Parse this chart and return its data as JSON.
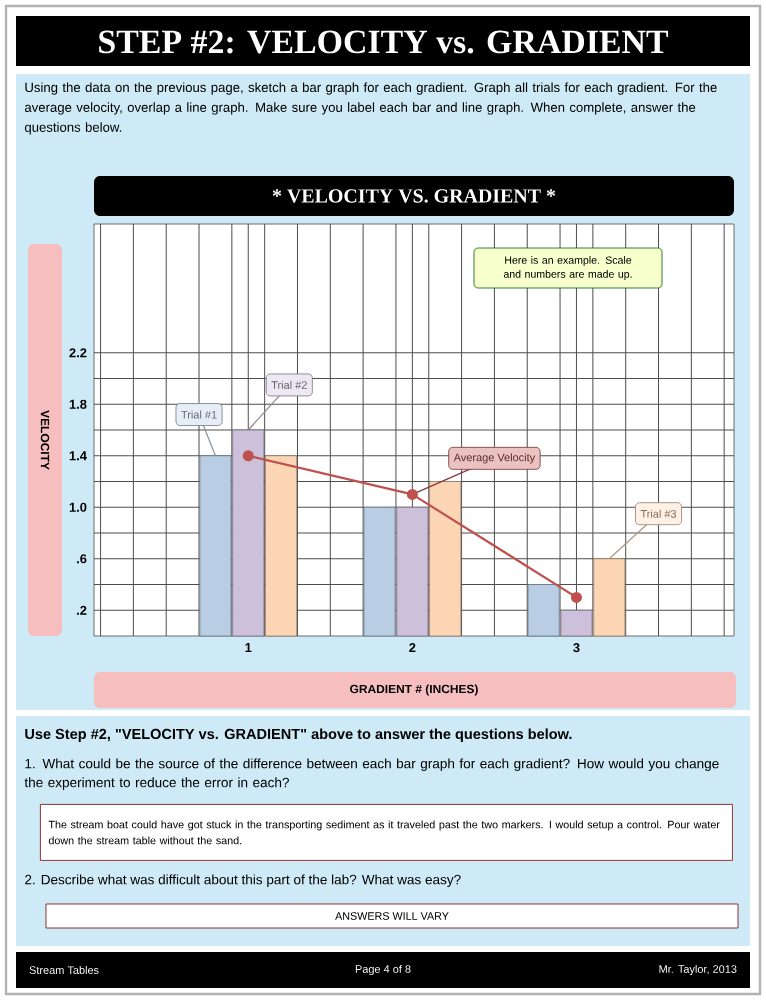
{
  "chart_data": {
    "type": "bar",
    "title": "*** VELOCITY VS. GRADIENT ***",
    "xlabel": "GRADIENT # (INCHES)",
    "ylabel": "VELOCITY",
    "categories": [
      "1",
      "2",
      "3"
    ],
    "series": [
      {
        "name": "Trial #1",
        "color": "#b9cde5",
        "values": [
          1.4,
          1.0,
          0.4
        ]
      },
      {
        "name": "Trial #2",
        "color": "#ccc0da",
        "values": [
          1.6,
          1.0,
          0.2
        ]
      },
      {
        "name": "Trial #3",
        "color": "#fcd5b4",
        "values": [
          1.4,
          1.2,
          0.6
        ]
      },
      {
        "name": "Average Velocity",
        "type": "line",
        "color": "#c0504d",
        "marker": "circle",
        "values": [
          1.4,
          1.1,
          0.3
        ]
      }
    ],
    "ylim": [
      0,
      3.2
    ],
    "yticks": [
      {
        "value": 0.2,
        "label": ".2"
      },
      {
        "value": 0.6,
        "label": ".6"
      },
      {
        "value": 1.0,
        "label": "1.0"
      },
      {
        "value": 1.4,
        "label": "1.4"
      },
      {
        "value": 1.8,
        "label": "1.8"
      },
      {
        "value": 2.2,
        "label": "2.2"
      }
    ],
    "grid": true,
    "legend": "bottom right",
    "annotations": [
      "STEP #2: VELOCITY vs. GRADIENT",
      "Using the data on the previous page, sketch a bar graph for each gradient.  Graph all trials for each gradient.  For the average velocity, overlap a line graph.  Make sure you label each bar and line graph.  When complete, answer the questions below.",
      "Here is an example.  Scale and numbers are made up.",
      "Use Step #2, \"VELOCITY vs. GRADIENT\" above to answer the questions below.",
      "1.  What could be the source of the difference between each bar graph for each gradient?  How would you change the experiment to reduce the error in each?",
      "The stream boat could have got stuck in the transporting sediment as it traveled past the two markers.  I would setup a control.  Pour water down the stream table without the sand.",
      "2.  Describe what was difficult about this part of the lab?  What was easy?",
      "ANSWERS WILL VARY",
      "Stream Tables",
      "Page 4 of 8",
      "Mr. Taylor, 2013"
    ]
  }
}
